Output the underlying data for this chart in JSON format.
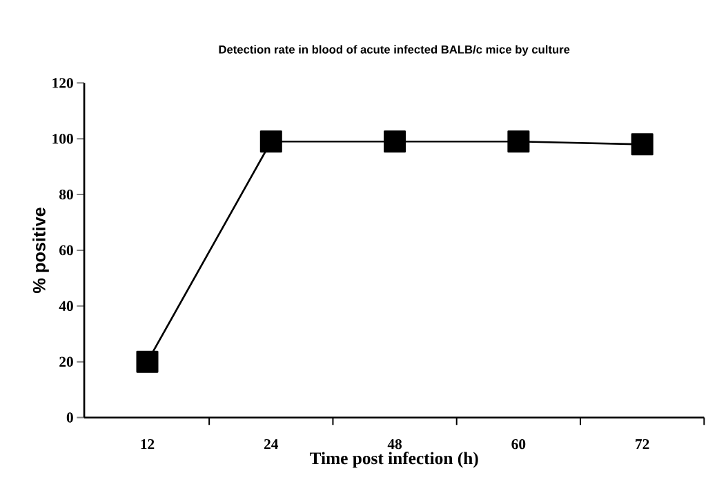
{
  "chart_data": {
    "type": "line",
    "title": "Detection rate in blood of acute infected BALB/c mice by culture",
    "xlabel": "Time post infection (h)",
    "ylabel": "% positive",
    "categories": [
      "12",
      "24",
      "48",
      "60",
      "72"
    ],
    "series": [
      {
        "color": "#000000",
        "values": [
          20,
          99,
          99,
          99,
          98
        ]
      }
    ],
    "ylim": [
      0,
      120
    ],
    "yticks": [
      0,
      20,
      40,
      60,
      80,
      100,
      120
    ],
    "marker": "square",
    "line_style": "solid"
  }
}
